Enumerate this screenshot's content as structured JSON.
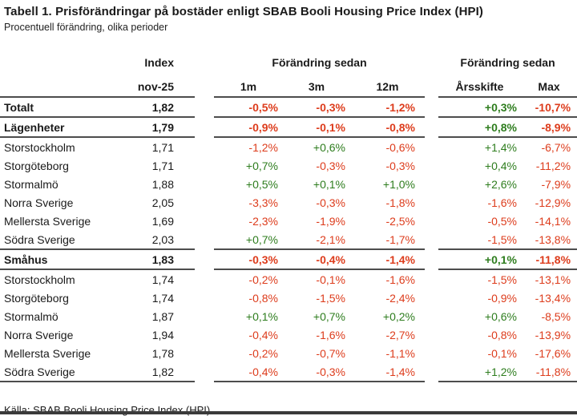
{
  "colors": {
    "positive": "#2e7d1e",
    "negative": "#dd3c1c",
    "rule": "#4d4d4d",
    "text": "#1a1a1a"
  },
  "chart_data": {
    "type": "table",
    "title": "Tabell 1. Prisförändringar på bostäder enligt SBAB Booli Housing Price Index (HPI)",
    "subtitle": "Procentuell förändring, olika perioder",
    "source": "Källa: SBAB Booli Housing Price Index (HPI)",
    "header": {
      "index_label": "Index",
      "index_period": "nov-25",
      "group2_label": "Förändring sedan",
      "group3_label": "Förändring sedan",
      "col_1m": "1m",
      "col_3m": "3m",
      "col_12m": "12m",
      "col_arsskifte": "Årsskifte",
      "col_max": "Max"
    },
    "rows": [
      {
        "label": "Totalt",
        "bold": true,
        "index": "1,82",
        "m1": "-0,5%",
        "m3": "-0,3%",
        "m12": "-1,2%",
        "ytd": "+0,3%",
        "max": "-10,7%"
      },
      {
        "label": "Lägenheter",
        "bold": true,
        "index": "1,79",
        "m1": "-0,9%",
        "m3": "-0,1%",
        "m12": "-0,8%",
        "ytd": "+0,8%",
        "max": "-8,9%"
      },
      {
        "label": "Storstockholm",
        "bold": false,
        "index": "1,71",
        "m1": "-1,2%",
        "m3": "+0,6%",
        "m12": "-0,6%",
        "ytd": "+1,4%",
        "max": "-6,7%"
      },
      {
        "label": "Storgöteborg",
        "bold": false,
        "index": "1,71",
        "m1": "+0,7%",
        "m3": "-0,3%",
        "m12": "-0,3%",
        "ytd": "+0,4%",
        "max": "-11,2%"
      },
      {
        "label": "Stormalmö",
        "bold": false,
        "index": "1,88",
        "m1": "+0,5%",
        "m3": "+0,1%",
        "m12": "+1,0%",
        "ytd": "+2,6%",
        "max": "-7,9%"
      },
      {
        "label": "Norra Sverige",
        "bold": false,
        "index": "2,05",
        "m1": "-3,3%",
        "m3": "-0,3%",
        "m12": "-1,8%",
        "ytd": "-1,6%",
        "max": "-12,9%"
      },
      {
        "label": "Mellersta Sverige",
        "bold": false,
        "index": "1,69",
        "m1": "-2,3%",
        "m3": "-1,9%",
        "m12": "-2,5%",
        "ytd": "-0,5%",
        "max": "-14,1%"
      },
      {
        "label": "Södra Sverige",
        "bold": false,
        "index": "2,03",
        "m1": "+0,7%",
        "m3": "-2,1%",
        "m12": "-1,7%",
        "ytd": "-1,5%",
        "max": "-13,8%"
      },
      {
        "label": "Småhus",
        "bold": true,
        "index": "1,83",
        "m1": "-0,3%",
        "m3": "-0,4%",
        "m12": "-1,4%",
        "ytd": "+0,1%",
        "max": "-11,8%"
      },
      {
        "label": "Storstockholm",
        "bold": false,
        "index": "1,74",
        "m1": "-0,2%",
        "m3": "-0,1%",
        "m12": "-1,6%",
        "ytd": "-1,5%",
        "max": "-13,1%"
      },
      {
        "label": "Storgöteborg",
        "bold": false,
        "index": "1,74",
        "m1": "-0,8%",
        "m3": "-1,5%",
        "m12": "-2,4%",
        "ytd": "-0,9%",
        "max": "-13,4%"
      },
      {
        "label": "Stormalmö",
        "bold": false,
        "index": "1,87",
        "m1": "+0,1%",
        "m3": "+0,7%",
        "m12": "+0,2%",
        "ytd": "+0,6%",
        "max": "-8,5%"
      },
      {
        "label": "Norra Sverige",
        "bold": false,
        "index": "1,94",
        "m1": "-0,4%",
        "m3": "-1,6%",
        "m12": "-2,7%",
        "ytd": "-0,8%",
        "max": "-13,9%"
      },
      {
        "label": "Mellersta Sverige",
        "bold": false,
        "index": "1,78",
        "m1": "-0,2%",
        "m3": "-0,7%",
        "m12": "-1,1%",
        "ytd": "-0,1%",
        "max": "-17,6%"
      },
      {
        "label": "Södra Sverige",
        "bold": false,
        "index": "1,82",
        "m1": "-0,4%",
        "m3": "-0,3%",
        "m12": "-1,4%",
        "ytd": "+1,2%",
        "max": "-11,8%"
      }
    ]
  }
}
